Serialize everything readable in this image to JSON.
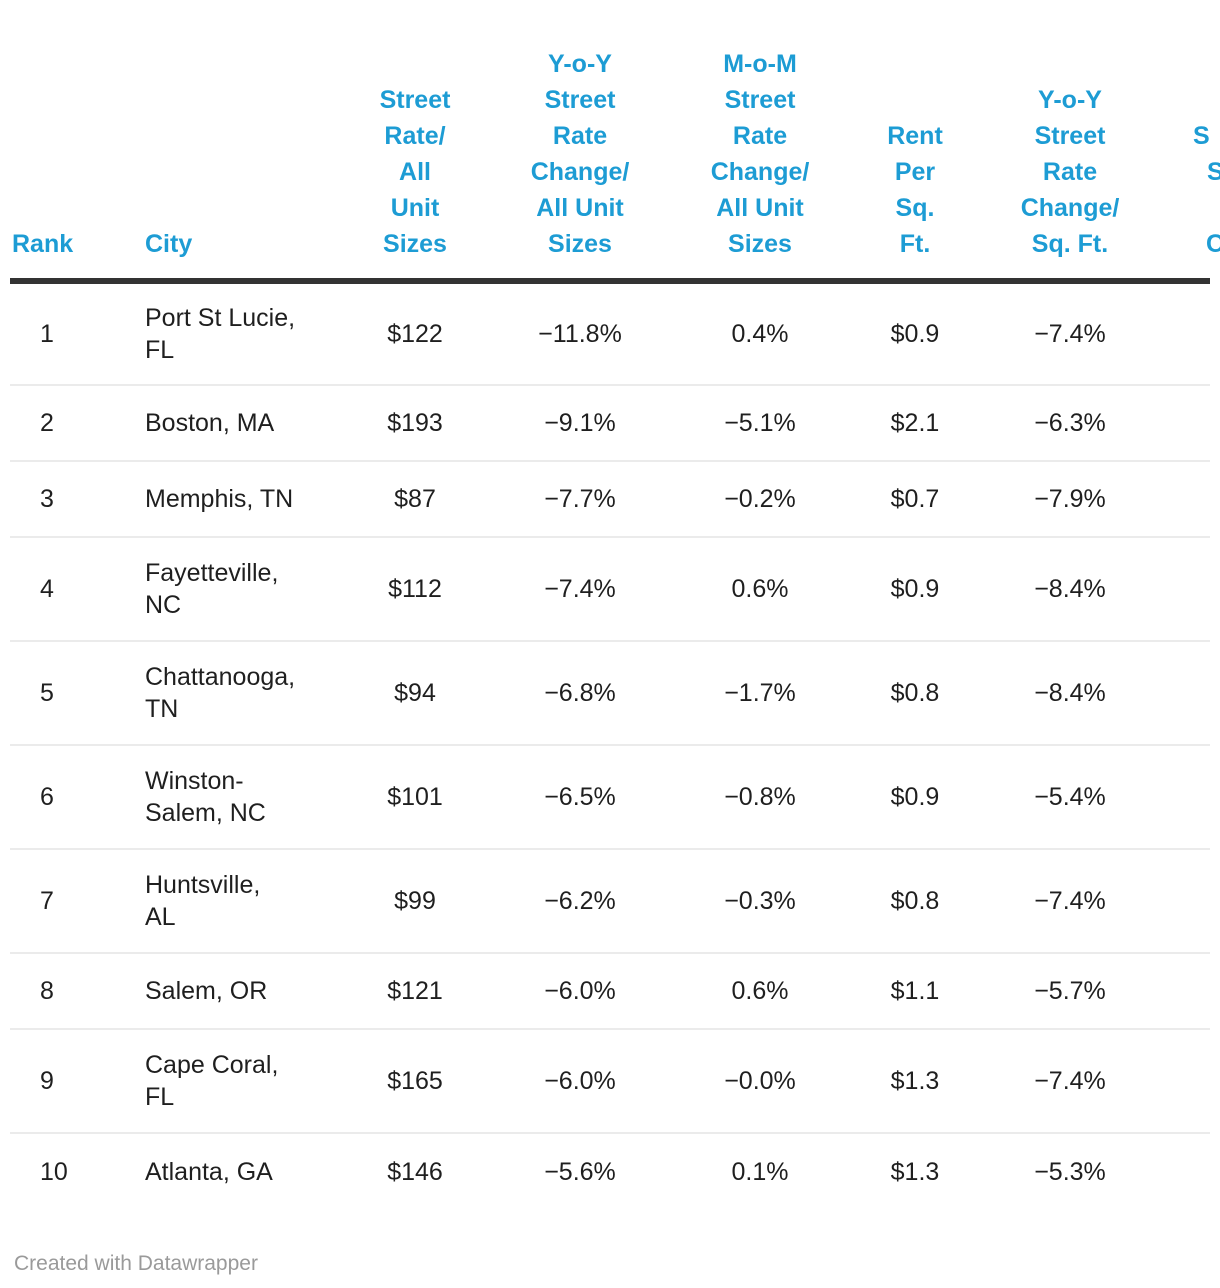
{
  "chart_data": {
    "type": "table",
    "columns": [
      {
        "id": "rank",
        "header": "Rank",
        "align": "left"
      },
      {
        "id": "city",
        "header": "City",
        "align": "left"
      },
      {
        "id": "street-rate-all-units",
        "header": "Street\nRate/\nAll\nUnit\nSizes",
        "align": "center"
      },
      {
        "id": "yoy-change-all-units",
        "header": "Y-o-Y\nStreet\nRate\nChange/\nAll Unit\nSizes",
        "align": "center"
      },
      {
        "id": "mom-change-all-units",
        "header": "M-o-M\nStreet\nRate\nChange/\nAll Unit\nSizes",
        "align": "center"
      },
      {
        "id": "rent-per-sqft",
        "header": "Rent\nPer\nSq.\nFt.",
        "align": "center"
      },
      {
        "id": "yoy-change-sqft",
        "header": "Y-o-Y\nStreet\nRate\nChange/\nSq. Ft.",
        "align": "center"
      }
    ],
    "rows": [
      [
        "1",
        "Port St Lucie,\nFL",
        "$122",
        "−11.8%",
        "0.4%",
        "$0.9",
        "−7.4%"
      ],
      [
        "2",
        "Boston, MA",
        "$193",
        "−9.1%",
        "−5.1%",
        "$2.1",
        "−6.3%"
      ],
      [
        "3",
        "Memphis, TN",
        "$87",
        "−7.7%",
        "−0.2%",
        "$0.7",
        "−7.9%"
      ],
      [
        "4",
        "Fayetteville,\nNC",
        "$112",
        "−7.4%",
        "0.6%",
        "$0.9",
        "−8.4%"
      ],
      [
        "5",
        "Chattanooga,\nTN",
        "$94",
        "−6.8%",
        "−1.7%",
        "$0.8",
        "−8.4%"
      ],
      [
        "6",
        "Winston-\nSalem, NC",
        "$101",
        "−6.5%",
        "−0.8%",
        "$0.9",
        "−5.4%"
      ],
      [
        "7",
        "Huntsville,\nAL",
        "$99",
        "−6.2%",
        "−0.3%",
        "$0.8",
        "−7.4%"
      ],
      [
        "8",
        "Salem, OR",
        "$121",
        "−6.0%",
        "0.6%",
        "$1.1",
        "−5.7%"
      ],
      [
        "9",
        "Cape Coral,\nFL",
        "$165",
        "−6.0%",
        "−0.0%",
        "$1.3",
        "−7.4%"
      ],
      [
        "10",
        "Atlanta, GA",
        "$146",
        "−5.6%",
        "0.1%",
        "$1.3",
        "−5.3%"
      ]
    ],
    "layout_hints": {
      "header_rule": true,
      "row_separators": true,
      "clipped_extra_column_at_right_edge": true
    }
  },
  "clipped_column": {
    "visible_header_fragments": [
      "S",
      "S",
      "C"
    ]
  },
  "footer": {
    "credit": "Created with Datawrapper"
  },
  "colors": {
    "header_text": "#1d9cd4",
    "body_text": "#1f1f1f",
    "header_rule": "#333333",
    "row_separator": "#ebebeb",
    "credit_text": "#9a9a9a",
    "background": "#ffffff"
  }
}
